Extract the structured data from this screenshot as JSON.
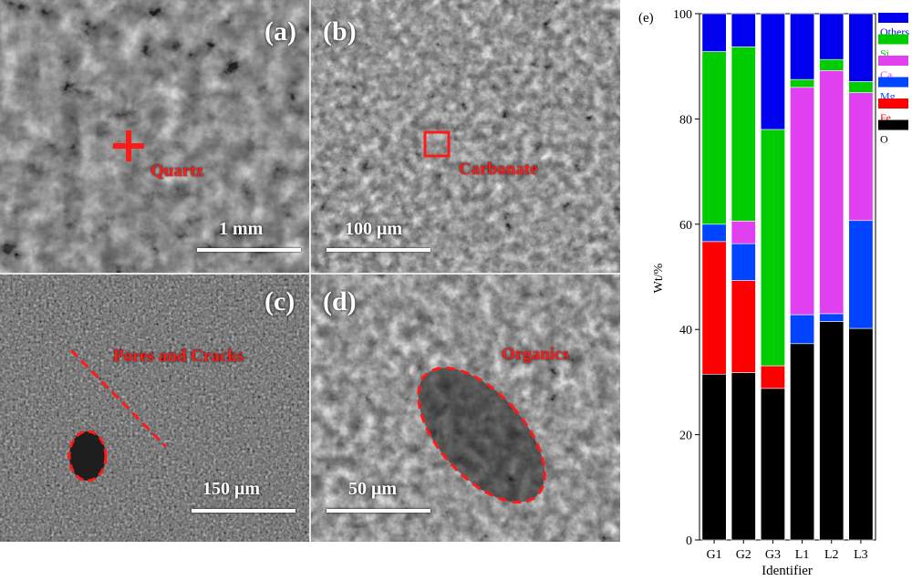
{
  "panels": {
    "a": {
      "letter": "(a)",
      "label": "Quartz",
      "scale": "1 mm"
    },
    "b": {
      "letter": "(b)",
      "label": "Carbonate",
      "scale": "100 μm"
    },
    "c": {
      "letter": "(c)",
      "label": "Pores and Cracks",
      "scale": "150 μm"
    },
    "d": {
      "letter": "(d)",
      "label": "Organics",
      "scale": "50 μm"
    }
  },
  "chart_data": {
    "type": "bar",
    "stacked": true,
    "panel_letter": "(e)",
    "categories": [
      "G1",
      "G2",
      "G3",
      "L1",
      "L2",
      "L3"
    ],
    "xlabel": "Identifier",
    "ylabel": "Wt/%",
    "ylim": [
      0,
      100
    ],
    "yticks": [
      0,
      20,
      40,
      60,
      80,
      100
    ],
    "legend_position": "top-right",
    "series": [
      {
        "name": "O",
        "color": "#000000",
        "values": [
          31.5,
          31.8,
          28.8,
          37.3,
          41.5,
          40.2
        ]
      },
      {
        "name": "Fe",
        "color": "#ff0000",
        "values": [
          25.2,
          17.5,
          4.3,
          0,
          0,
          0
        ]
      },
      {
        "name": "Mg",
        "color": "#0044ff",
        "values": [
          3.3,
          7.0,
          0,
          5.5,
          1.5,
          20.5
        ]
      },
      {
        "name": "Ca",
        "color": "#e040f0",
        "values": [
          0,
          4.3,
          0,
          43.2,
          46.2,
          24.3
        ]
      },
      {
        "name": "Si",
        "color": "#00cc00",
        "values": [
          32.8,
          33.1,
          44.9,
          1.5,
          2.1,
          2.1
        ]
      },
      {
        "name": "Others",
        "color": "#0000ee",
        "values": [
          7.2,
          6.3,
          22.0,
          12.5,
          8.7,
          12.9
        ]
      }
    ]
  }
}
